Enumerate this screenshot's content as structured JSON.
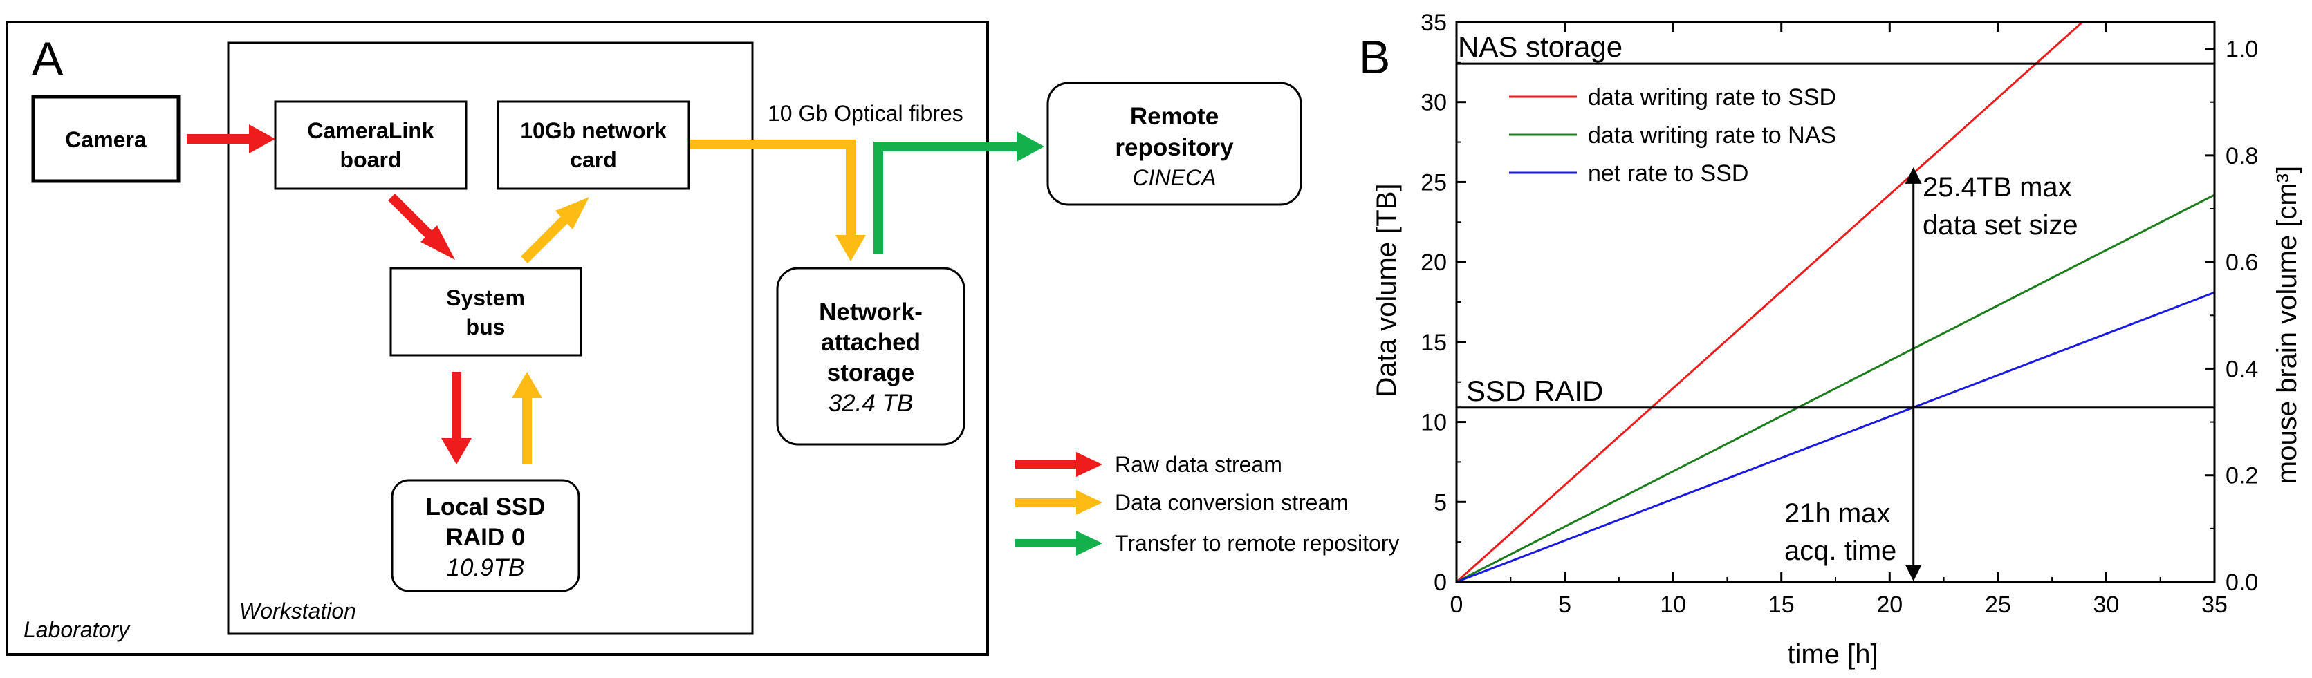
{
  "panel_a": {
    "label": "A",
    "laboratory": "Laboratory",
    "workstation": "Workstation",
    "camera": "Camera",
    "cameralink": [
      "CameraLink",
      "board"
    ],
    "netcard": [
      "10Gb network",
      "card"
    ],
    "sysbus": [
      "System",
      "bus"
    ],
    "ssd": {
      "lines": [
        "Local SSD",
        "RAID 0"
      ],
      "capacity": "10.9TB"
    },
    "nas": {
      "lines": [
        "Network-",
        "attached",
        "storage"
      ],
      "capacity": "32.4 TB"
    },
    "remote": {
      "lines": [
        "Remote",
        "repository"
      ],
      "site": "CINECA"
    },
    "optical": "10 Gb Optical fibres",
    "colors": {
      "raw": "#ee1c1c",
      "conversion": "#fdbb13",
      "transfer": "#13b04b"
    },
    "legend": [
      "Raw data stream",
      "Data conversion stream",
      "Transfer to remote repository"
    ]
  },
  "panel_b": {
    "label": "B",
    "nas_label": "NAS storage",
    "ssd_label": "SSD RAID",
    "annot_size": [
      "25.4TB max",
      "data set size"
    ],
    "annot_time": [
      "21h max",
      "acq. time"
    ]
  },
  "chart_data": {
    "type": "line",
    "xlabel": "time [h]",
    "ylabel": "Data volume [TB]",
    "y2label": "mouse brain volume [cm³]",
    "xlim": [
      0,
      35
    ],
    "ylim": [
      0,
      35
    ],
    "y2lim": [
      0,
      1.05
    ],
    "xticks": [
      0,
      5,
      10,
      15,
      20,
      25,
      30,
      35
    ],
    "yticks": [
      0,
      5,
      10,
      15,
      20,
      25,
      30,
      35
    ],
    "y2ticks": [
      "0.0",
      "0.2",
      "0.4",
      "0.6",
      "0.8",
      "1.0"
    ],
    "hlines": [
      {
        "name": "NAS storage",
        "y": 32.4
      },
      {
        "name": "SSD RAID",
        "y": 10.9
      }
    ],
    "series": [
      {
        "name": "data writing rate to SSD",
        "color": "#ee1c1c",
        "x": [
          0,
          28.9
        ],
        "y": [
          0,
          35
        ]
      },
      {
        "name": "data writing rate to NAS",
        "color": "#1c7d1c",
        "x": [
          0,
          35
        ],
        "y": [
          0,
          24.2
        ]
      },
      {
        "name": "net rate to SSD",
        "color": "#1a1ae0",
        "x": [
          0,
          35
        ],
        "y": [
          0,
          18.1
        ]
      }
    ],
    "vline_x": 21.1
  }
}
